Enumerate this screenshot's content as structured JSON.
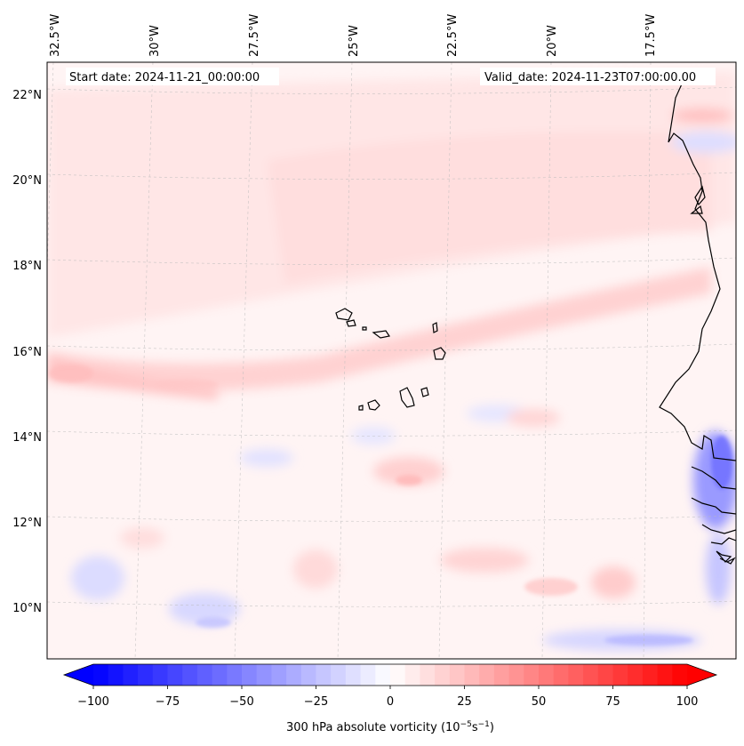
{
  "header": {
    "start_date": "Start date: 2024-11-21_00:00:00",
    "valid_date": "Valid_date: 2024-11-23T07:00:00.00"
  },
  "map": {
    "lon_labels": [
      "32.5°W",
      "30°W",
      "27.5°W",
      "25°W",
      "22.5°W",
      "20°W",
      "17.5°W"
    ],
    "lat_labels": [
      "22°N",
      "20°N",
      "18°N",
      "16°N",
      "14°N",
      "12°N",
      "10°N"
    ],
    "gridlines": true,
    "coastline_color": "#000000"
  },
  "colorbar": {
    "title_prefix": "300 hPa absolute vorticity (10",
    "title_exp1": "−5",
    "title_mid": "s",
    "title_exp2": "−1",
    "title_suffix": ")",
    "tick_labels": [
      "−100",
      "−75",
      "−50",
      "−25",
      "0",
      "25",
      "50",
      "75",
      "100"
    ],
    "vmin": -100,
    "vmax": 100,
    "extend": "both",
    "colormap": "bwr",
    "low_color": "#0000ff",
    "mid_color": "#ffffff",
    "high_color": "#ff0000"
  }
}
